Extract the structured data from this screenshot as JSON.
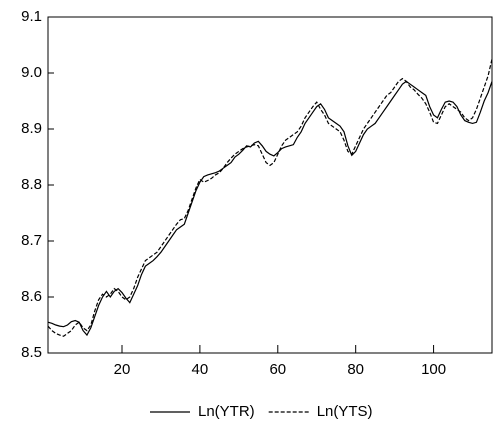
{
  "chart_data": {
    "type": "line",
    "x": [
      1,
      2,
      3,
      4,
      5,
      6,
      7,
      8,
      9,
      10,
      11,
      12,
      13,
      14,
      15,
      16,
      17,
      18,
      19,
      20,
      21,
      22,
      23,
      24,
      25,
      26,
      27,
      28,
      29,
      30,
      31,
      32,
      33,
      34,
      35,
      36,
      37,
      38,
      39,
      40,
      41,
      42,
      43,
      44,
      45,
      46,
      47,
      48,
      49,
      50,
      51,
      52,
      53,
      54,
      55,
      56,
      57,
      58,
      59,
      60,
      61,
      62,
      63,
      64,
      65,
      66,
      67,
      68,
      69,
      70,
      71,
      72,
      73,
      74,
      75,
      76,
      77,
      78,
      79,
      80,
      81,
      82,
      83,
      84,
      85,
      86,
      87,
      88,
      89,
      90,
      91,
      92,
      93,
      94,
      95,
      96,
      97,
      98,
      99,
      100,
      101,
      102,
      103,
      104,
      105,
      106,
      107,
      108,
      109,
      110,
      111,
      112,
      113,
      114,
      115
    ],
    "series": [
      {
        "name": "Ln(YTR)",
        "color": "#000000",
        "dash": "solid",
        "values": [
          8.555,
          8.553,
          8.55,
          8.548,
          8.547,
          8.55,
          8.556,
          8.558,
          8.555,
          8.54,
          8.532,
          8.545,
          8.565,
          8.585,
          8.6,
          8.61,
          8.6,
          8.61,
          8.615,
          8.608,
          8.598,
          8.59,
          8.605,
          8.62,
          8.64,
          8.655,
          8.66,
          8.665,
          8.672,
          8.68,
          8.69,
          8.7,
          8.71,
          8.72,
          8.725,
          8.73,
          8.75,
          8.77,
          8.79,
          8.805,
          8.815,
          8.818,
          8.82,
          8.822,
          8.825,
          8.83,
          8.835,
          8.84,
          8.85,
          8.855,
          8.862,
          8.87,
          8.868,
          8.875,
          8.878,
          8.87,
          8.86,
          8.855,
          8.852,
          8.858,
          8.865,
          8.868,
          8.87,
          8.872,
          8.885,
          8.895,
          8.91,
          8.92,
          8.93,
          8.94,
          8.945,
          8.935,
          8.92,
          8.915,
          8.91,
          8.905,
          8.895,
          8.87,
          8.853,
          8.86,
          8.875,
          8.89,
          8.9,
          8.905,
          8.91,
          8.92,
          8.93,
          8.94,
          8.95,
          8.96,
          8.97,
          8.98,
          8.985,
          8.98,
          8.975,
          8.97,
          8.965,
          8.96,
          8.94,
          8.925,
          8.92,
          8.935,
          8.948,
          8.95,
          8.948,
          8.94,
          8.925,
          8.915,
          8.912,
          8.91,
          8.912,
          8.93,
          8.95,
          8.965,
          8.985
        ]
      },
      {
        "name": "Ln(YTS)",
        "color": "#000000",
        "dash": "dashed",
        "values": [
          8.548,
          8.54,
          8.535,
          8.532,
          8.53,
          8.535,
          8.54,
          8.55,
          8.555,
          8.545,
          8.54,
          8.55,
          8.575,
          8.595,
          8.605,
          8.6,
          8.605,
          8.615,
          8.61,
          8.6,
          8.595,
          8.6,
          8.615,
          8.635,
          8.65,
          8.665,
          8.67,
          8.675,
          8.68,
          8.69,
          8.7,
          8.71,
          8.72,
          8.73,
          8.738,
          8.74,
          8.755,
          8.775,
          8.795,
          8.81,
          8.805,
          8.808,
          8.812,
          8.818,
          8.822,
          8.83,
          8.84,
          8.848,
          8.855,
          8.86,
          8.865,
          8.868,
          8.87,
          8.872,
          8.87,
          8.855,
          8.84,
          8.835,
          8.84,
          8.855,
          8.87,
          8.88,
          8.885,
          8.89,
          8.895,
          8.905,
          8.92,
          8.93,
          8.94,
          8.948,
          8.935,
          8.925,
          8.91,
          8.905,
          8.9,
          8.895,
          8.88,
          8.86,
          8.855,
          8.87,
          8.885,
          8.9,
          8.91,
          8.92,
          8.93,
          8.94,
          8.95,
          8.96,
          8.965,
          8.975,
          8.985,
          8.99,
          8.985,
          8.975,
          8.97,
          8.962,
          8.955,
          8.945,
          8.93,
          8.912,
          8.91,
          8.925,
          8.94,
          8.945,
          8.94,
          8.935,
          8.93,
          8.92,
          8.915,
          8.92,
          8.935,
          8.955,
          8.975,
          8.995,
          9.025
        ]
      }
    ],
    "xlim": [
      1,
      115
    ],
    "xticks": [
      20,
      40,
      60,
      80,
      100
    ],
    "ylim": [
      8.5,
      9.1
    ],
    "yticks": [
      {
        "value": 8.5,
        "label": "8.5"
      },
      {
        "value": 8.6,
        "label": "8.6"
      },
      {
        "value": 8.7,
        "label": "8.7"
      },
      {
        "value": 8.8,
        "label": "8.8"
      },
      {
        "value": 8.9,
        "label": "8.9"
      },
      {
        "value": 9.0,
        "label": "9.0"
      },
      {
        "value": 9.1,
        "label": "9.1"
      }
    ],
    "grid": false,
    "legend": "bottom"
  }
}
